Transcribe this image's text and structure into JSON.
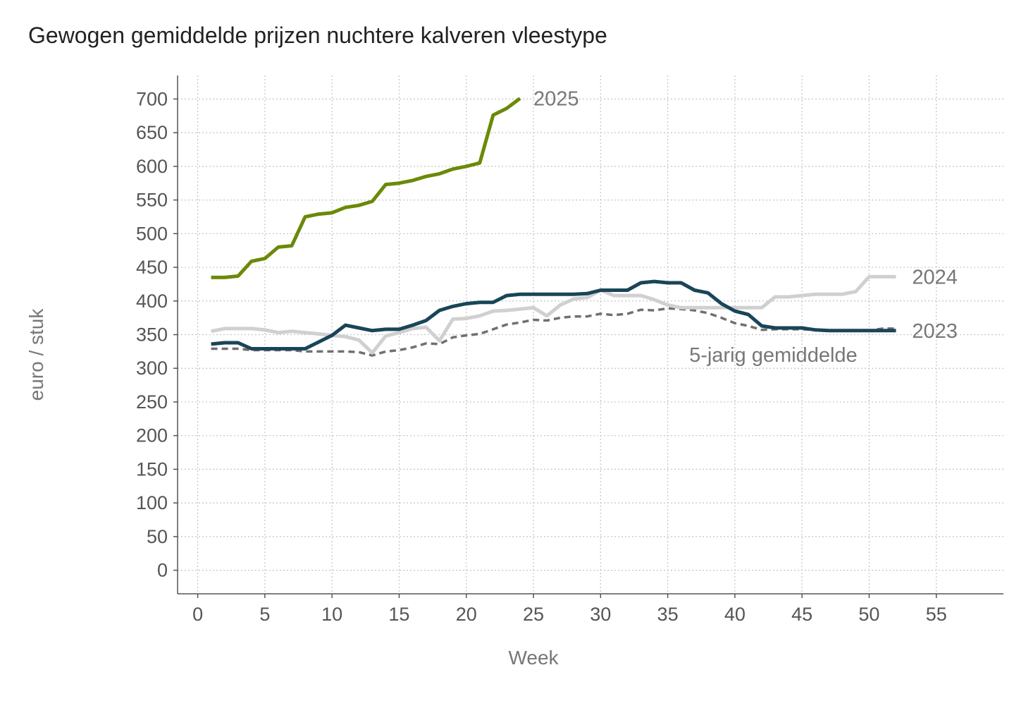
{
  "chart_data": {
    "type": "line",
    "title": "Gewogen gemiddelde prijzen nuchtere kalveren vleestype",
    "xlabel": "Week",
    "ylabel": "euro / stuk",
    "xlim": [
      -1.5,
      60
    ],
    "ylim": [
      -35,
      735
    ],
    "x_ticks": [
      0,
      5,
      10,
      15,
      20,
      25,
      30,
      35,
      40,
      45,
      50,
      55
    ],
    "y_ticks": [
      0,
      50,
      100,
      150,
      200,
      250,
      300,
      350,
      400,
      450,
      500,
      550,
      600,
      650,
      700
    ],
    "grid": true,
    "series": [
      {
        "name": "5-jarig gemiddelde",
        "color": "#707070",
        "dashed": true,
        "x": [
          1,
          2,
          3,
          4,
          5,
          6,
          7,
          8,
          9,
          10,
          11,
          12,
          13,
          14,
          15,
          16,
          17,
          18,
          19,
          20,
          21,
          22,
          23,
          24,
          25,
          26,
          27,
          28,
          29,
          30,
          31,
          32,
          33,
          34,
          35,
          36,
          37,
          38,
          39,
          40,
          41,
          42,
          43,
          44,
          45,
          46,
          47,
          48,
          49,
          50,
          51,
          52
        ],
        "y": [
          329,
          329,
          329,
          327,
          327,
          327,
          327,
          325,
          325,
          325,
          325,
          324,
          319,
          325,
          327,
          331,
          337,
          336,
          346,
          349,
          351,
          358,
          365,
          368,
          372,
          371,
          375,
          377,
          377,
          381,
          379,
          381,
          387,
          386,
          389,
          388,
          386,
          382,
          375,
          367,
          363,
          357,
          358,
          358,
          358,
          357,
          356,
          356,
          356,
          356,
          359,
          359
        ]
      },
      {
        "name": "2024",
        "color": "#d0d0d0",
        "dashed": false,
        "x": [
          1,
          2,
          3,
          4,
          5,
          6,
          7,
          8,
          9,
          10,
          11,
          12,
          13,
          14,
          15,
          16,
          17,
          18,
          19,
          20,
          21,
          22,
          23,
          24,
          25,
          26,
          27,
          28,
          29,
          30,
          31,
          32,
          33,
          34,
          35,
          36,
          37,
          38,
          39,
          40,
          41,
          42,
          43,
          44,
          45,
          46,
          47,
          48,
          49,
          50,
          51,
          52
        ],
        "y": [
          355,
          359,
          359,
          359,
          357,
          353,
          355,
          353,
          351,
          349,
          347,
          342,
          323,
          348,
          353,
          359,
          361,
          341,
          373,
          374,
          378,
          385,
          386,
          388,
          390,
          378,
          394,
          403,
          405,
          416,
          408,
          408,
          408,
          402,
          394,
          390,
          390,
          390,
          390,
          390,
          390,
          390,
          406,
          406,
          408,
          410,
          410,
          410,
          414,
          436,
          436,
          436
        ]
      },
      {
        "name": "2023",
        "color": "#1a4558",
        "dashed": false,
        "x": [
          1,
          2,
          3,
          4,
          5,
          6,
          7,
          8,
          9,
          10,
          11,
          12,
          13,
          14,
          15,
          16,
          17,
          18,
          19,
          20,
          21,
          22,
          23,
          24,
          25,
          26,
          27,
          28,
          29,
          30,
          31,
          32,
          33,
          34,
          35,
          36,
          37,
          38,
          39,
          40,
          41,
          42,
          43,
          44,
          45,
          46,
          47,
          48,
          49,
          50,
          51,
          52
        ],
        "y": [
          336,
          338,
          338,
          329,
          329,
          329,
          329,
          329,
          339,
          349,
          364,
          360,
          356,
          358,
          358,
          364,
          371,
          386,
          392,
          396,
          398,
          398,
          408,
          410,
          410,
          410,
          410,
          410,
          411,
          416,
          416,
          416,
          427,
          429,
          427,
          427,
          416,
          412,
          396,
          385,
          380,
          363,
          360,
          360,
          360,
          357,
          356,
          356,
          356,
          356,
          356,
          356
        ]
      },
      {
        "name": "2025",
        "color": "#6a8a08",
        "dashed": false,
        "x": [
          1,
          2,
          3,
          4,
          5,
          6,
          7,
          8,
          9,
          10,
          11,
          12,
          13,
          14,
          15,
          16,
          17,
          18,
          19,
          20,
          21,
          22,
          23,
          24
        ],
        "y": [
          435,
          435,
          437,
          459,
          463,
          480,
          482,
          525,
          529,
          531,
          539,
          542,
          548,
          573,
          575,
          579,
          585,
          589,
          596,
          600,
          605,
          676,
          686,
          701
        ]
      }
    ],
    "series_labels": [
      {
        "text": "2025",
        "x": 25,
        "y": 701
      },
      {
        "text": "2024",
        "x": 53.2,
        "y": 436
      },
      {
        "text": "2023",
        "x": 53.2,
        "y": 356
      },
      {
        "text": "5-jarig gemiddelde",
        "x": 36.6,
        "y": 320
      }
    ]
  }
}
